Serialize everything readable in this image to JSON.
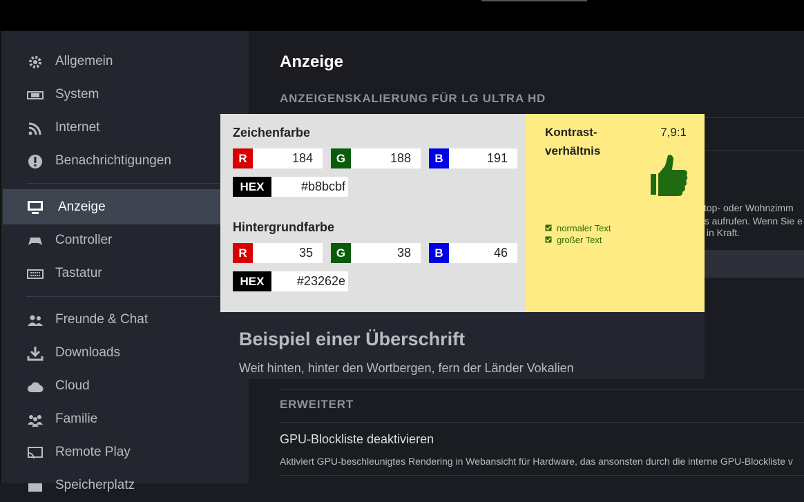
{
  "sidebar": {
    "items": [
      "Allgemein",
      "System",
      "Internet",
      "Benachrichtigungen",
      "Anzeige",
      "Controller",
      "Tastatur",
      "Freunde & Chat",
      "Downloads",
      "Cloud",
      "Familie",
      "Remote Play",
      "Speicherplatz"
    ]
  },
  "main": {
    "title": "Anzeige",
    "section": "ANZEIGENSKALIERUNG FÜR LG ULTRA HD",
    "partial_lines": [
      "ktop- oder Wohnzimm",
      "us aufrufen. Wenn Sie e",
      "s in Kraft."
    ],
    "advanced": {
      "heading": "ERWEITERT",
      "setting": "GPU-Blockliste deaktivieren",
      "description": "Aktiviert GPU-beschleunigtes Rendering in Webansicht für Hardware, das ansonsten durch die interne GPU-Blockliste v"
    }
  },
  "overlay": {
    "channel_labels": [
      "R",
      "G",
      "B"
    ],
    "hex_label": "HEX",
    "foreground": {
      "label": "Zeichenfarbe",
      "values": [
        "184",
        "188",
        "191"
      ],
      "hex": "#b8bcbf"
    },
    "background": {
      "label": "Hintergrundfarbe",
      "values": [
        "35",
        "38",
        "46"
      ],
      "hex": "#23262e"
    },
    "contrast": {
      "label_lines": [
        "Kontrast-",
        "verhältnis"
      ],
      "ratio": "7,9:1",
      "checks": [
        "normaler Text",
        "großer Text"
      ]
    },
    "sample": {
      "heading": "Beispiel einer Überschrift",
      "text": "Weit hinten, hinter den Wortbergen, fern der Länder Vokalien"
    }
  }
}
